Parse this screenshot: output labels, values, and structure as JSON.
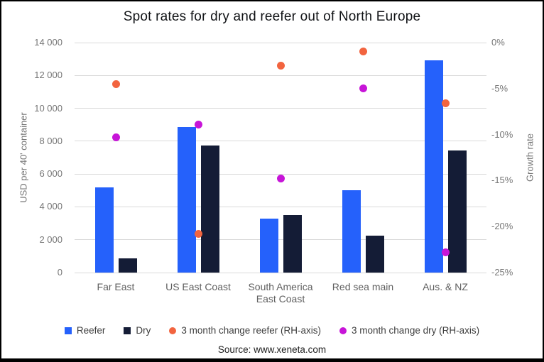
{
  "source_note": "Source: www.xeneta.com",
  "chart_data": {
    "type": "bar",
    "title": "Spot rates for dry and reefer out of North Europe",
    "categories": [
      "Far East",
      "US East Coast",
      "South America East Coast",
      "Red sea main",
      "Aus. & NZ"
    ],
    "left_axis": {
      "label": "USD per 40' container",
      "min": 0,
      "max": 14000,
      "tick_step": 2000,
      "tick_labels": [
        "0",
        "2 000",
        "4 000",
        "6 000",
        "8 000",
        "10 000",
        "12 000",
        "14 000"
      ]
    },
    "right_axis": {
      "label": "Growth rate",
      "min": -25,
      "max": 0,
      "tick_step": 5,
      "tick_labels": [
        "0%",
        "-5%",
        "-10%",
        "-15%",
        "-20%",
        "-25%"
      ]
    },
    "grid": true,
    "legend_position": "bottom",
    "series": [
      {
        "name": "Reefer",
        "type": "bar",
        "axis": "left",
        "color": "#2561fb",
        "values": [
          5200,
          8850,
          3300,
          5000,
          12900
        ]
      },
      {
        "name": "Dry",
        "type": "bar",
        "axis": "left",
        "color": "#141c36",
        "values": [
          850,
          7750,
          3500,
          2250,
          7450
        ]
      },
      {
        "name": "3 month change reefer (RH-axis)",
        "type": "scatter",
        "axis": "right",
        "color": "#f2643f",
        "values": [
          -4.5,
          -20.8,
          -2.5,
          -1.0,
          -6.6
        ]
      },
      {
        "name": "3 month change dry (RH-axis)",
        "type": "scatter",
        "axis": "right",
        "color": "#c715d8",
        "values": [
          -10.3,
          -8.9,
          -14.8,
          -5.0,
          -22.8
        ]
      }
    ]
  }
}
